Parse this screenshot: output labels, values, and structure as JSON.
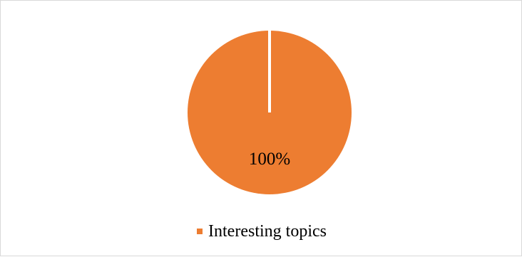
{
  "chart_data": {
    "type": "pie",
    "title": "",
    "categories": [
      "Interesting topics"
    ],
    "values": [
      100
    ],
    "data_labels": [
      "100%"
    ],
    "legend": {
      "placement": "bottom",
      "entries": [
        "Interesting topics"
      ]
    },
    "colors": {
      "slice": "#ED7D31",
      "separator": "#ffffff"
    }
  }
}
